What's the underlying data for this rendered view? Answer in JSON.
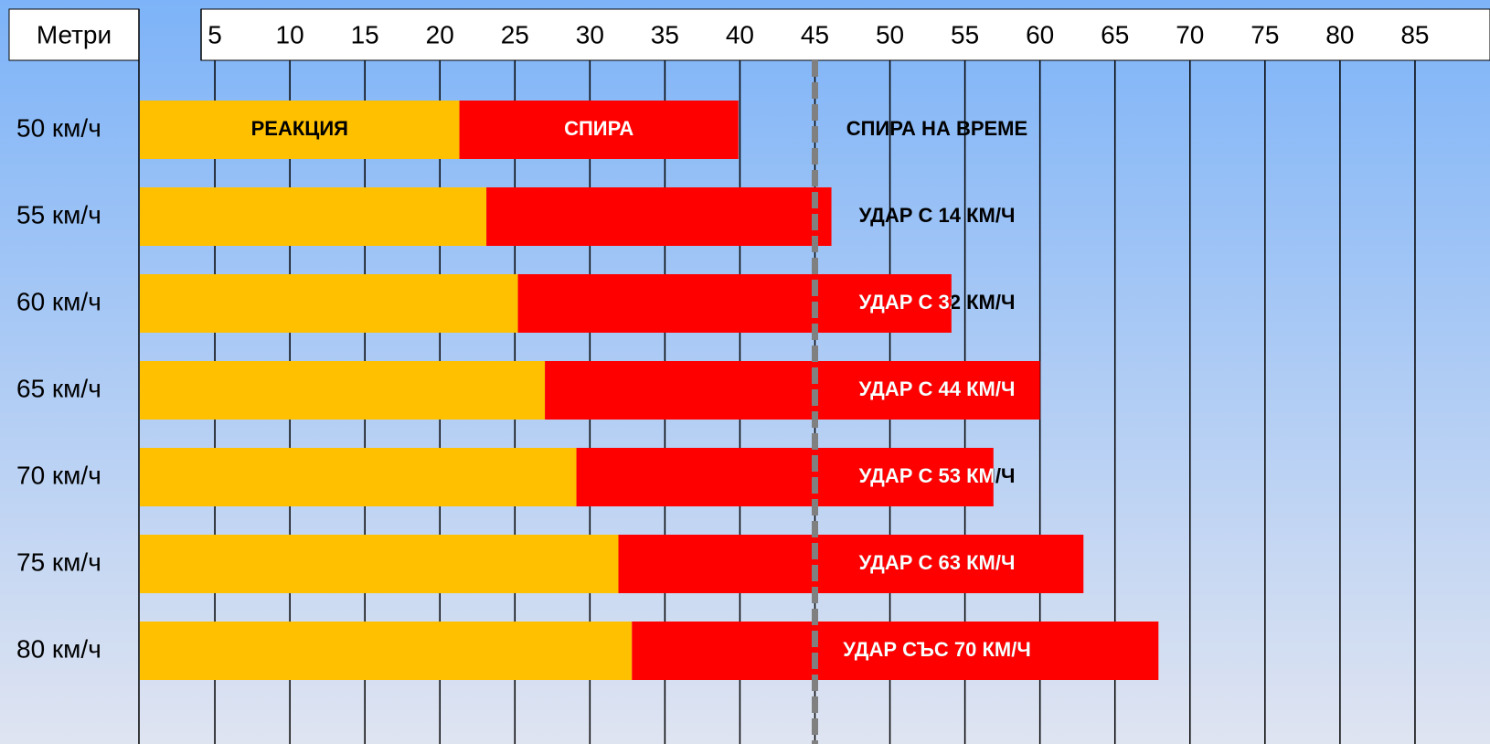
{
  "chart_data": {
    "type": "bar",
    "orientation": "horizontal",
    "stacked": true,
    "x_label": "Метри",
    "categories": [
      "50 км/ч",
      "55 км/ч",
      "60 км/ч",
      "65 км/ч",
      "70 км/ч",
      "75 км/ч",
      "80 км/ч"
    ],
    "series": [
      {
        "name": "РЕАКЦИЯ",
        "color": "#ffc000",
        "values": [
          21.3,
          23.1,
          25.2,
          27.0,
          29.1,
          31.9,
          32.8
        ]
      },
      {
        "name": "СПИРА",
        "color": "#ff0000",
        "values": [
          18.6,
          23.0,
          28.9,
          33.0,
          27.8,
          31.0,
          35.1
        ]
      }
    ],
    "annotations": [
      "СПИРА НА ВРЕМЕ",
      "УДАР С 14 КМ/Ч",
      "УДАР С 32 КМ/Ч",
      "УДАР С 44 КМ/Ч",
      "УДАР С 53  КМ/Ч",
      "УДАР С 63 КМ/Ч",
      "УДАР СЪС 70 КМ/Ч"
    ],
    "reference_line": 45,
    "xlim": [
      0,
      90
    ],
    "xticks": [
      5,
      10,
      15,
      20,
      25,
      30,
      35,
      40,
      45,
      50,
      55,
      60,
      65,
      70,
      75,
      80,
      85
    ],
    "grid": true
  }
}
